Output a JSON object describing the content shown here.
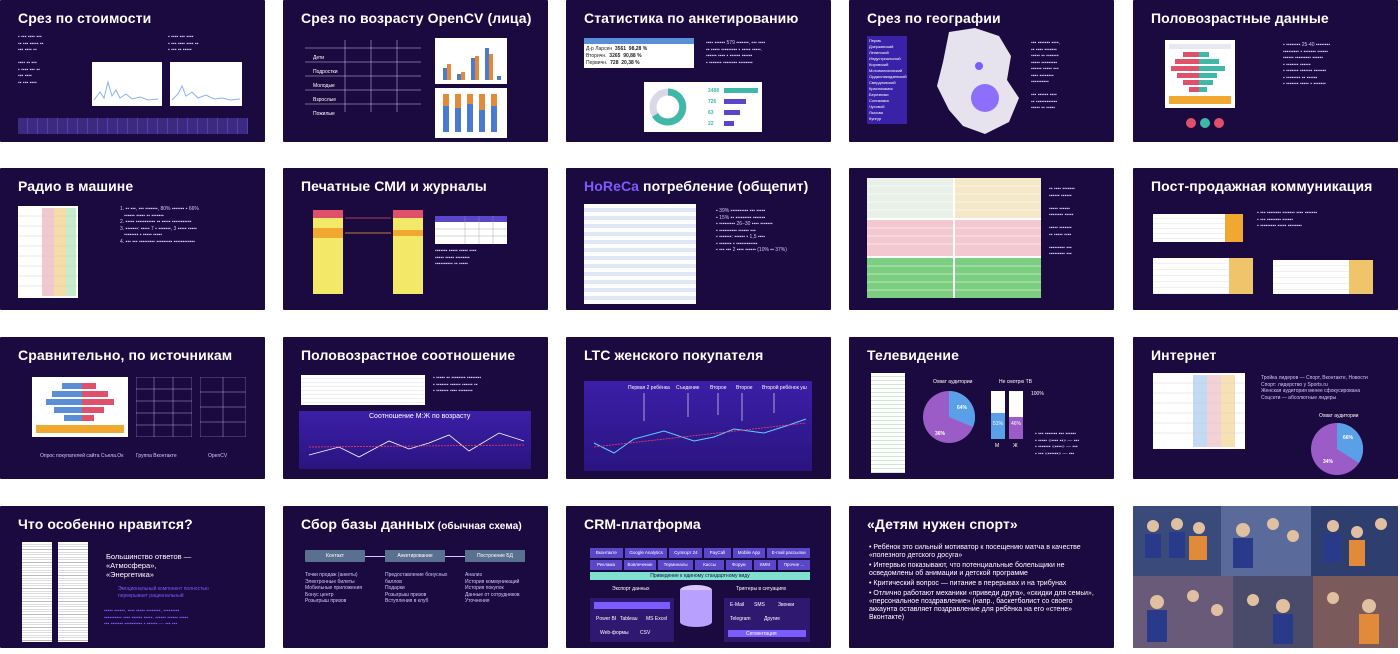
{
  "slides": [
    {
      "id": "s1",
      "title": "Срез по стоимости"
    },
    {
      "id": "s2",
      "title": "Срез по возрасту OpenCV (лица)"
    },
    {
      "id": "s3",
      "title": "Статистика по анкетированию"
    },
    {
      "id": "s4",
      "title": "Срез по географии"
    },
    {
      "id": "s5",
      "title": "Половозрастные данные"
    },
    {
      "id": "s6",
      "title": "Радио в машине"
    },
    {
      "id": "s7",
      "title": "Печатные СМИ и журналы"
    },
    {
      "id": "s8",
      "title_accent": "HoReCa",
      "title_rest": " потребление (общепит)"
    },
    {
      "id": "s9",
      "title": ""
    },
    {
      "id": "s10",
      "title": "Пост-продажная коммуникация"
    },
    {
      "id": "s11",
      "title": "Сравнительно, по источникам"
    },
    {
      "id": "s12",
      "title": "Половозрастное соотношение"
    },
    {
      "id": "s13",
      "title": "LTC женского покупателя"
    },
    {
      "id": "s14",
      "title": "Телевидение"
    },
    {
      "id": "s15",
      "title": "Интернет"
    },
    {
      "id": "s16",
      "title": "Что особенно нравится?"
    },
    {
      "id": "s17",
      "title": "Сбор базы данных",
      "title_small": " (обычная схема)"
    },
    {
      "id": "s18",
      "title": "CRM-платформа"
    },
    {
      "id": "s19",
      "title": "«Детям нужен спорт»"
    },
    {
      "id": "s20",
      "title": ""
    }
  ],
  "s2_table": {
    "rows": [
      "Дети",
      "Подростки",
      "Молодые",
      "Взрослые",
      "Пожилые"
    ]
  },
  "s3": {
    "table_rows": [
      {
        "label": "Д-р Ларсен",
        "v1": "3561",
        "v2": "98,28 %"
      },
      {
        "label": "Вторичн.",
        "v1": "3265",
        "v2": "90,88 %"
      },
      {
        "label": "Первичн.",
        "v1": "728",
        "v2": "20,38 %"
      }
    ],
    "numbers": [
      "2488",
      "726",
      "63",
      "22"
    ]
  },
  "s4_cities": [
    "Пермь",
    "Дзержинский",
    "Ленинский",
    "Индустриальный",
    "Кировский",
    "Мотовилихинский",
    "Орджоникидзевский",
    "Свердловский",
    "Краснокамск",
    "Березники",
    "Соликамск",
    "Чусовой",
    "Лысьва",
    "Кунгур"
  ],
  "s11_captions": [
    "Опрос покупателей сайта Съела.Ок",
    "Группа Вконтакте",
    "OpenCV"
  ],
  "s12_chart_title": "Соотношение М:Ж по возрасту",
  "s13_markers": [
    "Первая 2 ребёнка",
    "Съедение",
    "Второе",
    "Второе",
    "Второй ребёнок уш"
  ],
  "s14": {
    "pie_label": "Охват аудитории",
    "bars_label": "Не смотрю ТВ",
    "pct_big": "64%",
    "pct_small": "36%",
    "bar_pcts": [
      "51%",
      "46%",
      "100%"
    ],
    "bar_labels": [
      "M",
      "Ж"
    ]
  },
  "s15": {
    "bullets": [
      "Тройка лидеров — Спорт, Вконтакте, Новости",
      "Спорт: лидерство у Sports.ru",
      "Женская аудитория менее сфокусирована",
      "Соцсети — абсолютные лидеры"
    ],
    "pie_label": "Охват аудитории",
    "pct_a": "66%",
    "pct_b": "34%"
  },
  "s16": {
    "line1": "Большинство ответов —",
    "line2": "«Атмосфера»,",
    "line3": "«Энергетика»",
    "note": "Эмоциональный компонент полностью перекрывает рациональный"
  },
  "s17": {
    "nodes": [
      "Контакт",
      "Анкетирование",
      "Построение БД"
    ],
    "col1": [
      "Точки продаж (анкеты)",
      "Электронные билеты",
      "Мобильные приложения",
      "Бонус центр",
      "Розыгрыш призов"
    ],
    "col2": [
      "Предоставление бонусных баллов",
      "Подарки",
      "Розыгрыш призов",
      "Вступления в клуб"
    ],
    "col3": [
      "Анализ",
      "История коммуникаций",
      "История покупок",
      "Данные от сотрудников",
      "Уточнения"
    ]
  },
  "s18": {
    "row1": [
      "Вконтакте",
      "Google Analytics",
      "Суппорт 24",
      "PayCall",
      "Mobile App",
      "E-mail рассылки"
    ],
    "row2": [
      "Реклама",
      "Вовлечение",
      "Терминалы",
      "Кассы",
      "Форум",
      "SMM",
      "Прочие ..."
    ],
    "banner": "Приведение к единому стандартному виду",
    "export": "Экспорт данных",
    "triggers": "Триггеры в ситуациях",
    "db": "Собственная база данных",
    "left_items": [
      "Power BI",
      "Tableau",
      "MS Excel",
      "Web-формы",
      "CSV"
    ],
    "right_items": [
      "E-Mail",
      "SMS",
      "Звонки",
      "Telegram",
      "Другие",
      "Сегментация"
    ]
  },
  "s19_bullets": [
    "Ребёнок это сильный мотиватор к посещению матча в качестве «полезного детского досуга»",
    "Интервью показывают, что потенциальные болельщики не осведомлены об анимации и детской программе",
    "Критический вопрос — питание в перерывах и на трибунах",
    "Отлично работают механики «приведи друга», «скидки для семьи», «персональное поздравление» (напр., баскетболист со своего аккаунта оставляет поздравление для ребёнка на его «стене» Вконтакте)"
  ],
  "colors": {
    "slide_bg": "#1b0a3f",
    "accent": "#7b5cff",
    "text": "#ffffff"
  }
}
